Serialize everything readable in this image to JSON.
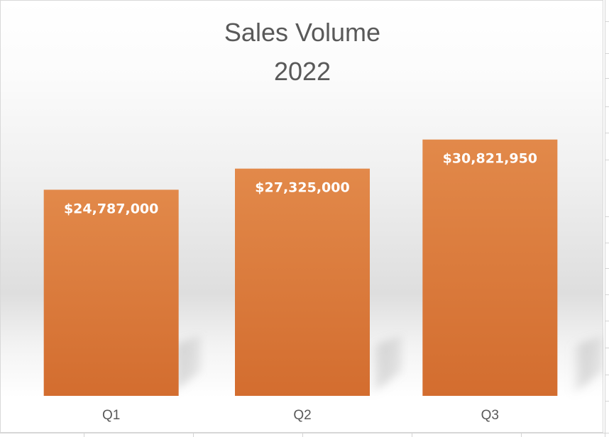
{
  "colors": {
    "bar_top": "#e2894a",
    "bar_bottom": "#d36d2f",
    "title": "#595959",
    "axis_label": "#595959",
    "data_label": "#ffffff"
  },
  "chart_data": {
    "type": "bar",
    "title_lines": [
      "Sales Volume",
      "2022"
    ],
    "categories": [
      "Q1",
      "Q2",
      "Q3"
    ],
    "values": [
      24787000,
      27325000,
      30821950
    ],
    "data_labels": [
      "$24,787,000",
      "$27,325,000",
      "$30,821,950"
    ],
    "ylim": [
      0,
      36000000
    ],
    "grid": false,
    "legend": "none",
    "xlabel": "",
    "ylabel": ""
  }
}
